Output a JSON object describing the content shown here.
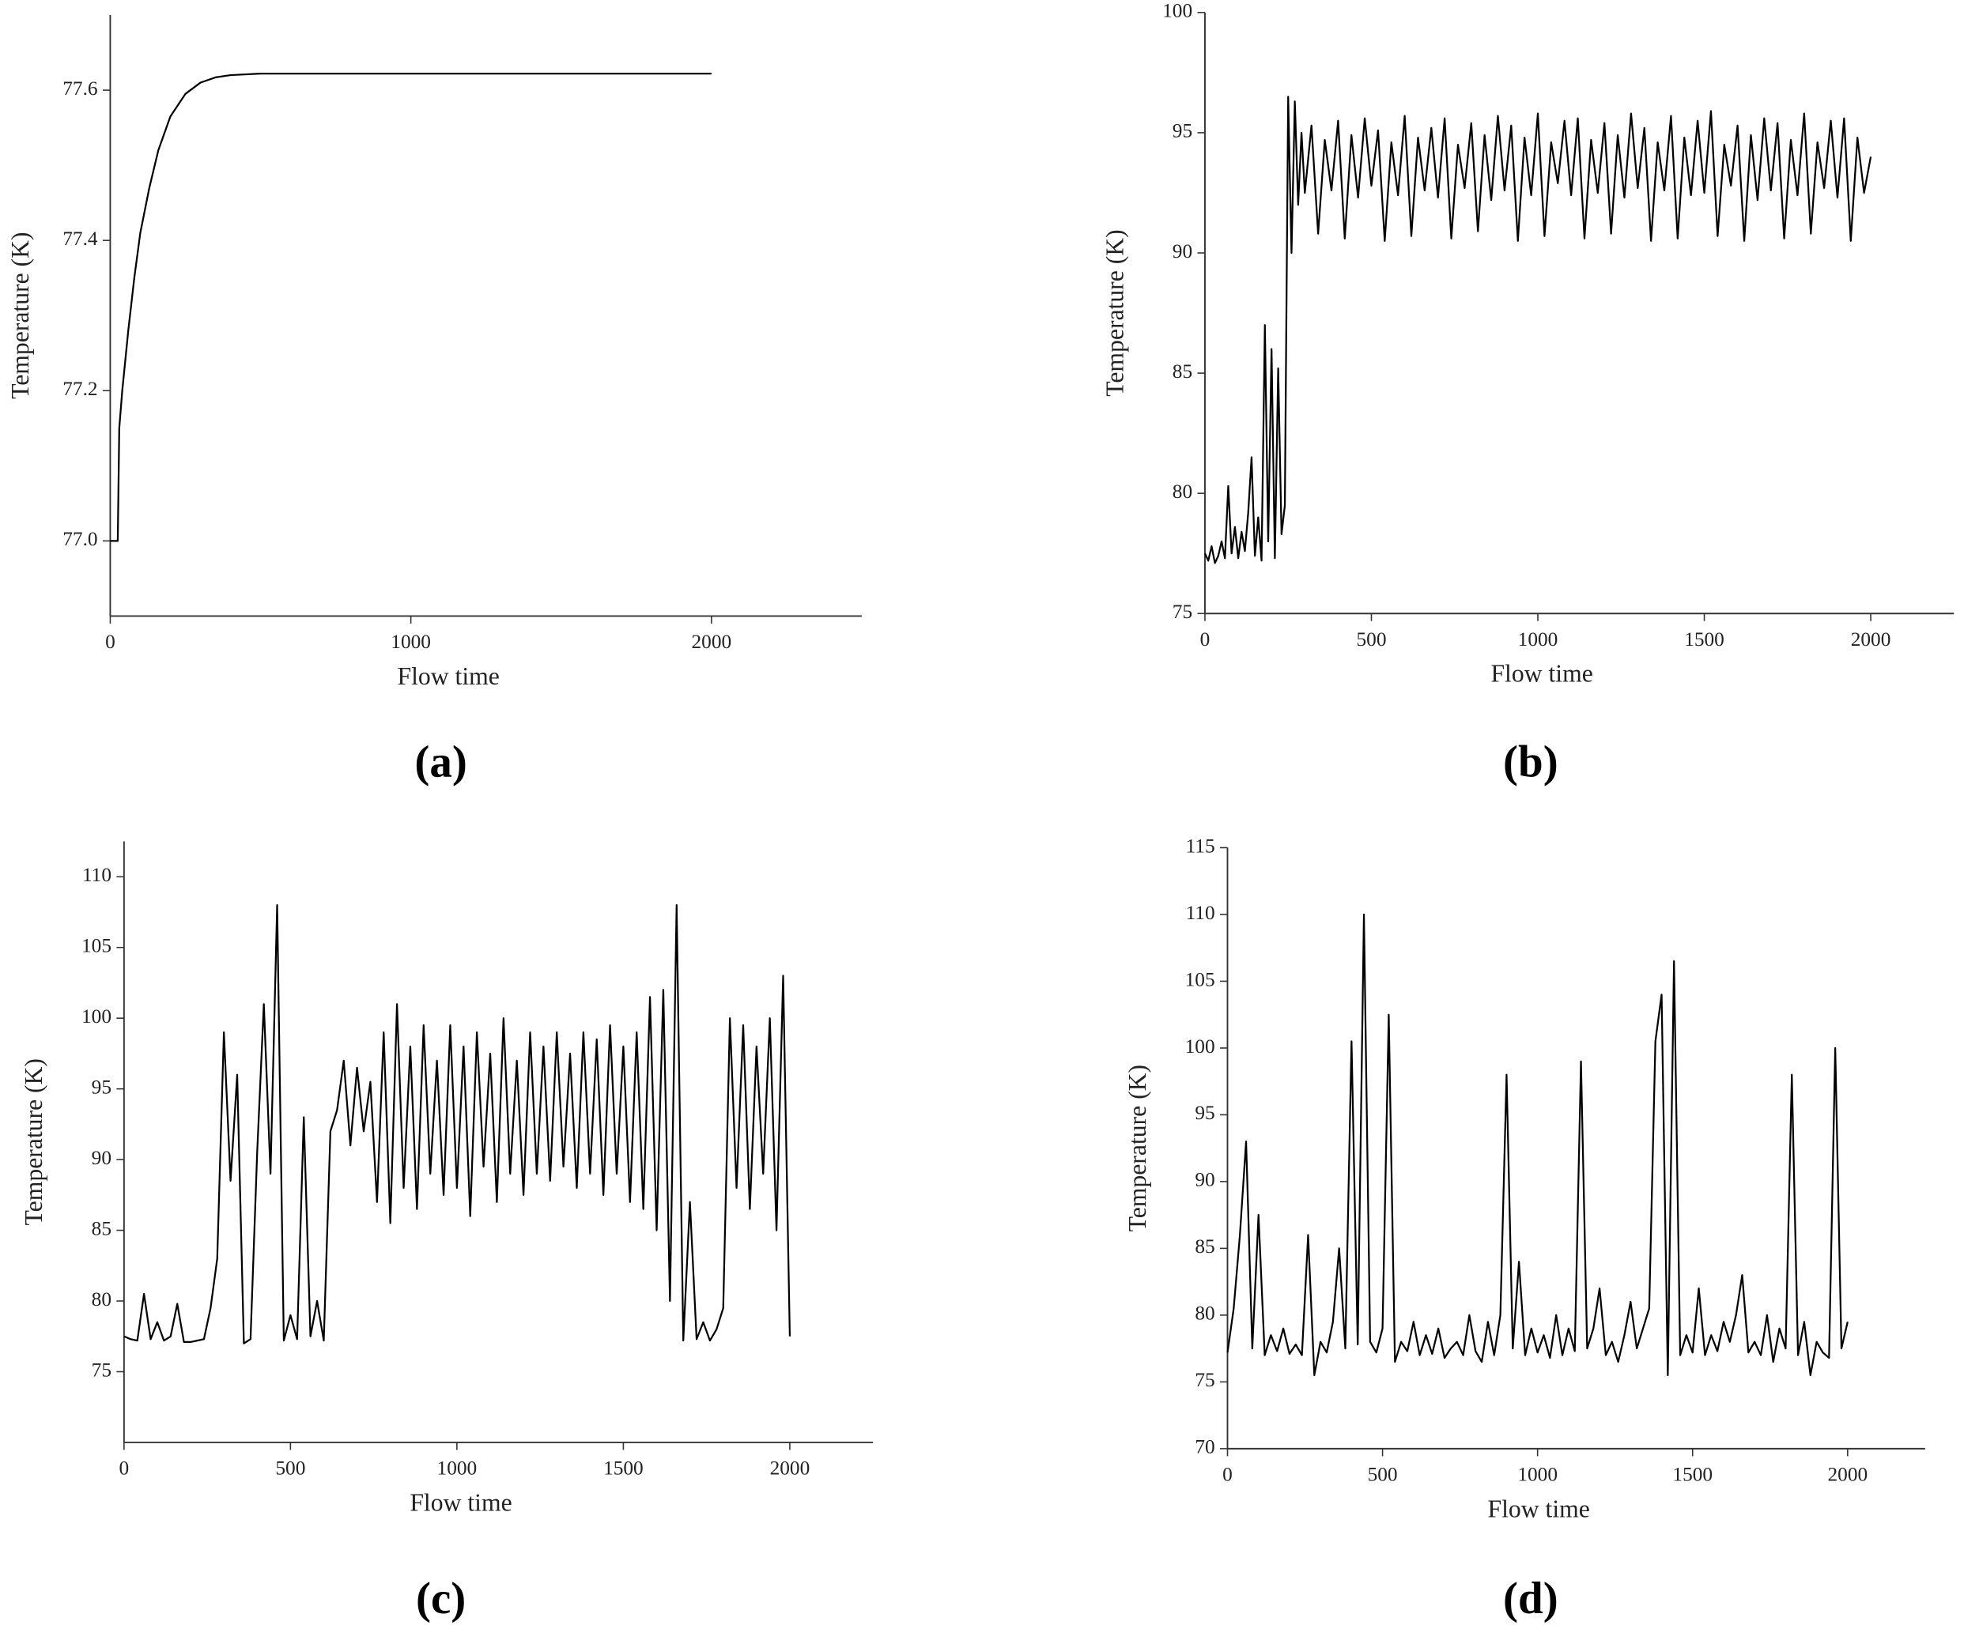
{
  "chart_data": [
    {
      "type": "line",
      "caption": "(a)",
      "xlabel": "Flow time",
      "ylabel": "Temperature (K)",
      "color": "#000000",
      "xlim": [
        0,
        2500
      ],
      "ylim": [
        76.9,
        77.7
      ],
      "xticks": [
        0,
        1000,
        2000
      ],
      "yticks": [
        {
          "value": 77,
          "label": "77.0"
        },
        77.2,
        77.4,
        77.6
      ],
      "x": [
        0,
        20,
        25,
        30,
        40,
        60,
        80,
        100,
        130,
        160,
        200,
        250,
        300,
        350,
        400,
        500,
        600,
        800,
        1000,
        1500,
        2000
      ],
      "values": [
        77.0,
        77.0,
        77.0,
        77.15,
        77.2,
        77.28,
        77.35,
        77.41,
        77.47,
        77.52,
        77.565,
        77.595,
        77.61,
        77.617,
        77.62,
        77.622,
        77.622,
        77.622,
        77.622,
        77.622,
        77.622
      ]
    },
    {
      "type": "line",
      "caption": "(b)",
      "xlabel": "Flow time",
      "ylabel": "Temperature (K)",
      "color": "#000000",
      "xlim": [
        0,
        2250
      ],
      "ylim": [
        75,
        100
      ],
      "xticks": [
        0,
        500,
        1000,
        1500,
        2000
      ],
      "yticks": [
        75,
        80,
        85,
        90,
        95,
        100
      ],
      "x": [
        0,
        10,
        20,
        30,
        40,
        50,
        60,
        70,
        80,
        90,
        100,
        110,
        120,
        130,
        140,
        150,
        160,
        170,
        180,
        190,
        200,
        210,
        220,
        230,
        240,
        250,
        260,
        270,
        280,
        290,
        300,
        320,
        340,
        360,
        380,
        400,
        420,
        440,
        460,
        480,
        500,
        520,
        540,
        560,
        580,
        600,
        620,
        640,
        660,
        680,
        700,
        720,
        740,
        760,
        780,
        800,
        820,
        840,
        860,
        880,
        900,
        920,
        940,
        960,
        980,
        1000,
        1020,
        1040,
        1060,
        1080,
        1100,
        1120,
        1140,
        1160,
        1180,
        1200,
        1220,
        1240,
        1260,
        1280,
        1300,
        1320,
        1340,
        1360,
        1380,
        1400,
        1420,
        1440,
        1460,
        1480,
        1500,
        1520,
        1540,
        1560,
        1580,
        1600,
        1620,
        1640,
        1660,
        1680,
        1700,
        1720,
        1740,
        1760,
        1780,
        1800,
        1820,
        1840,
        1860,
        1880,
        1900,
        1920,
        1940,
        1960,
        1980,
        2000
      ],
      "values": [
        77.5,
        77.2,
        77.8,
        77.1,
        77.4,
        78.0,
        77.3,
        80.3,
        77.5,
        78.6,
        77.3,
        78.4,
        77.6,
        79.2,
        81.5,
        77.4,
        79.0,
        77.2,
        87.0,
        78.0,
        86.0,
        77.3,
        85.2,
        78.3,
        79.5,
        96.5,
        90.0,
        96.3,
        92.0,
        95.0,
        92.5,
        95.3,
        90.8,
        94.7,
        92.6,
        95.5,
        90.6,
        94.9,
        92.3,
        95.6,
        92.8,
        95.1,
        90.5,
        94.6,
        92.4,
        95.7,
        90.7,
        94.8,
        92.6,
        95.2,
        92.3,
        95.6,
        90.6,
        94.5,
        92.7,
        95.4,
        90.9,
        94.9,
        92.2,
        95.7,
        92.6,
        95.3,
        90.5,
        94.8,
        92.4,
        95.8,
        90.7,
        94.6,
        92.9,
        95.5,
        92.4,
        95.6,
        90.6,
        94.7,
        92.5,
        95.4,
        90.8,
        94.9,
        92.3,
        95.8,
        92.7,
        95.2,
        90.5,
        94.6,
        92.6,
        95.7,
        90.6,
        94.8,
        92.4,
        95.5,
        92.5,
        95.9,
        90.7,
        94.5,
        92.8,
        95.3,
        90.5,
        94.9,
        92.2,
        95.6,
        92.6,
        95.4,
        90.6,
        94.7,
        92.4,
        95.8,
        90.8,
        94.6,
        92.7,
        95.5,
        92.3,
        95.6,
        90.5,
        94.8,
        92.5,
        94.0
      ]
    },
    {
      "type": "line",
      "caption": "(c)",
      "xlabel": "Flow time",
      "ylabel": "Temperature (K)",
      "color": "#000000",
      "xlim": [
        0,
        2250
      ],
      "ylim": [
        70,
        112.5
      ],
      "xticks": [
        0,
        500,
        1000,
        1500,
        2000
      ],
      "yticks": [
        75,
        80,
        85,
        90,
        95,
        100,
        105,
        110
      ],
      "x": [
        0,
        20,
        40,
        60,
        80,
        100,
        120,
        140,
        160,
        180,
        200,
        220,
        240,
        260,
        280,
        300,
        320,
        340,
        360,
        380,
        400,
        420,
        440,
        460,
        480,
        500,
        520,
        540,
        560,
        580,
        600,
        620,
        640,
        660,
        680,
        700,
        720,
        740,
        760,
        780,
        800,
        820,
        840,
        860,
        880,
        900,
        920,
        940,
        960,
        980,
        1000,
        1020,
        1040,
        1060,
        1080,
        1100,
        1120,
        1140,
        1160,
        1180,
        1200,
        1220,
        1240,
        1260,
        1280,
        1300,
        1320,
        1340,
        1360,
        1380,
        1400,
        1420,
        1440,
        1460,
        1480,
        1500,
        1520,
        1540,
        1560,
        1580,
        1600,
        1620,
        1640,
        1660,
        1680,
        1700,
        1720,
        1740,
        1760,
        1780,
        1800,
        1820,
        1840,
        1860,
        1880,
        1900,
        1920,
        1940,
        1960,
        1980,
        2000
      ],
      "values": [
        77.5,
        77.3,
        77.2,
        80.5,
        77.3,
        78.5,
        77.2,
        77.5,
        79.8,
        77.1,
        77.1,
        77.2,
        77.3,
        79.5,
        83.0,
        99.0,
        88.5,
        96.0,
        77.0,
        77.3,
        90.5,
        101.0,
        89.0,
        108.0,
        77.2,
        79.0,
        77.3,
        93.0,
        77.5,
        80.0,
        77.2,
        92.0,
        93.5,
        97.0,
        91.0,
        96.5,
        92.0,
        95.5,
        87.0,
        99.0,
        85.5,
        101.0,
        88.0,
        98.0,
        86.5,
        99.5,
        89.0,
        97.0,
        87.5,
        99.5,
        88.0,
        98.0,
        86.0,
        99.0,
        89.5,
        97.5,
        87.0,
        100.0,
        89.0,
        97.0,
        87.5,
        99.0,
        89.0,
        98.0,
        88.5,
        99.0,
        89.5,
        97.5,
        88.0,
        99.0,
        89.0,
        98.5,
        87.5,
        99.5,
        89.0,
        98.0,
        87.0,
        99.0,
        86.5,
        101.5,
        85.0,
        102.0,
        80.0,
        108.0,
        77.2,
        87.0,
        77.3,
        78.5,
        77.2,
        78.0,
        79.5,
        100.0,
        88.0,
        99.5,
        86.5,
        98.0,
        89.0,
        100.0,
        85.0,
        103.0,
        77.5
      ]
    },
    {
      "type": "line",
      "caption": "(d)",
      "xlabel": "Flow time",
      "ylabel": "Temperature (K)",
      "color": "#000000",
      "xlim": [
        0,
        2250
      ],
      "ylim": [
        70,
        115
      ],
      "xticks": [
        0,
        500,
        1000,
        1500,
        2000
      ],
      "yticks": [
        70,
        75,
        80,
        85,
        90,
        95,
        100,
        105,
        110,
        115
      ],
      "x": [
        0,
        20,
        40,
        60,
        80,
        100,
        120,
        140,
        160,
        180,
        200,
        220,
        240,
        260,
        280,
        300,
        320,
        340,
        360,
        380,
        400,
        420,
        440,
        460,
        480,
        500,
        520,
        540,
        560,
        580,
        600,
        620,
        640,
        660,
        680,
        700,
        720,
        740,
        760,
        780,
        800,
        820,
        840,
        860,
        880,
        900,
        920,
        940,
        960,
        980,
        1000,
        1020,
        1040,
        1060,
        1080,
        1100,
        1120,
        1140,
        1160,
        1180,
        1200,
        1220,
        1240,
        1260,
        1280,
        1300,
        1320,
        1340,
        1360,
        1380,
        1400,
        1420,
        1440,
        1460,
        1480,
        1500,
        1520,
        1540,
        1560,
        1580,
        1600,
        1620,
        1640,
        1660,
        1680,
        1700,
        1720,
        1740,
        1760,
        1780,
        1800,
        1820,
        1840,
        1860,
        1880,
        1900,
        1920,
        1940,
        1960,
        1980,
        2000
      ],
      "values": [
        77.2,
        80.5,
        86.0,
        93.0,
        77.5,
        87.5,
        77.0,
        78.5,
        77.3,
        79.0,
        77.1,
        77.8,
        77.0,
        86.0,
        75.5,
        78.0,
        77.2,
        79.5,
        85.0,
        77.5,
        100.5,
        77.8,
        110.0,
        78.0,
        77.2,
        79.0,
        102.5,
        76.5,
        78.0,
        77.3,
        79.5,
        77.0,
        78.5,
        77.1,
        79.0,
        76.8,
        77.5,
        78.0,
        77.0,
        80.0,
        77.3,
        76.5,
        79.5,
        77.0,
        80.0,
        98.0,
        77.5,
        84.0,
        77.0,
        79.0,
        77.2,
        78.5,
        76.8,
        80.0,
        77.0,
        79.0,
        77.3,
        99.0,
        77.5,
        79.0,
        82.0,
        77.0,
        78.0,
        76.5,
        78.5,
        81.0,
        77.5,
        79.0,
        80.5,
        100.5,
        104.0,
        75.5,
        106.5,
        77.0,
        78.5,
        77.2,
        82.0,
        77.0,
        78.5,
        77.3,
        79.5,
        78.0,
        80.0,
        83.0,
        77.2,
        78.0,
        77.0,
        80.0,
        76.5,
        79.0,
        77.5,
        98.0,
        77.0,
        79.5,
        75.5,
        78.0,
        77.2,
        76.8,
        100.0,
        77.5,
        79.5
      ]
    }
  ]
}
